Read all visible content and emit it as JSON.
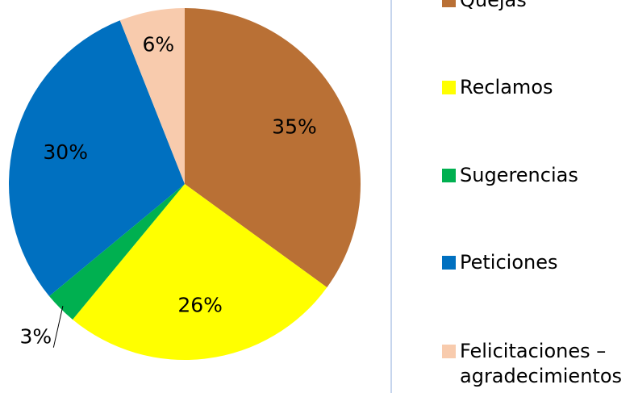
{
  "chart_data": {
    "type": "pie",
    "categories": [
      "Quejas",
      "Reclamos",
      "Sugerencias",
      "Peticiones",
      "Felicitaciones – agradecimientos"
    ],
    "values": [
      35,
      26,
      3,
      30,
      6
    ],
    "value_labels": [
      "35%",
      "26%",
      "3%",
      "30%",
      "6%"
    ],
    "colors": [
      "#b97035",
      "#ffff00",
      "#00b050",
      "#0070c0",
      "#f8cbad"
    ],
    "legend": "right"
  }
}
